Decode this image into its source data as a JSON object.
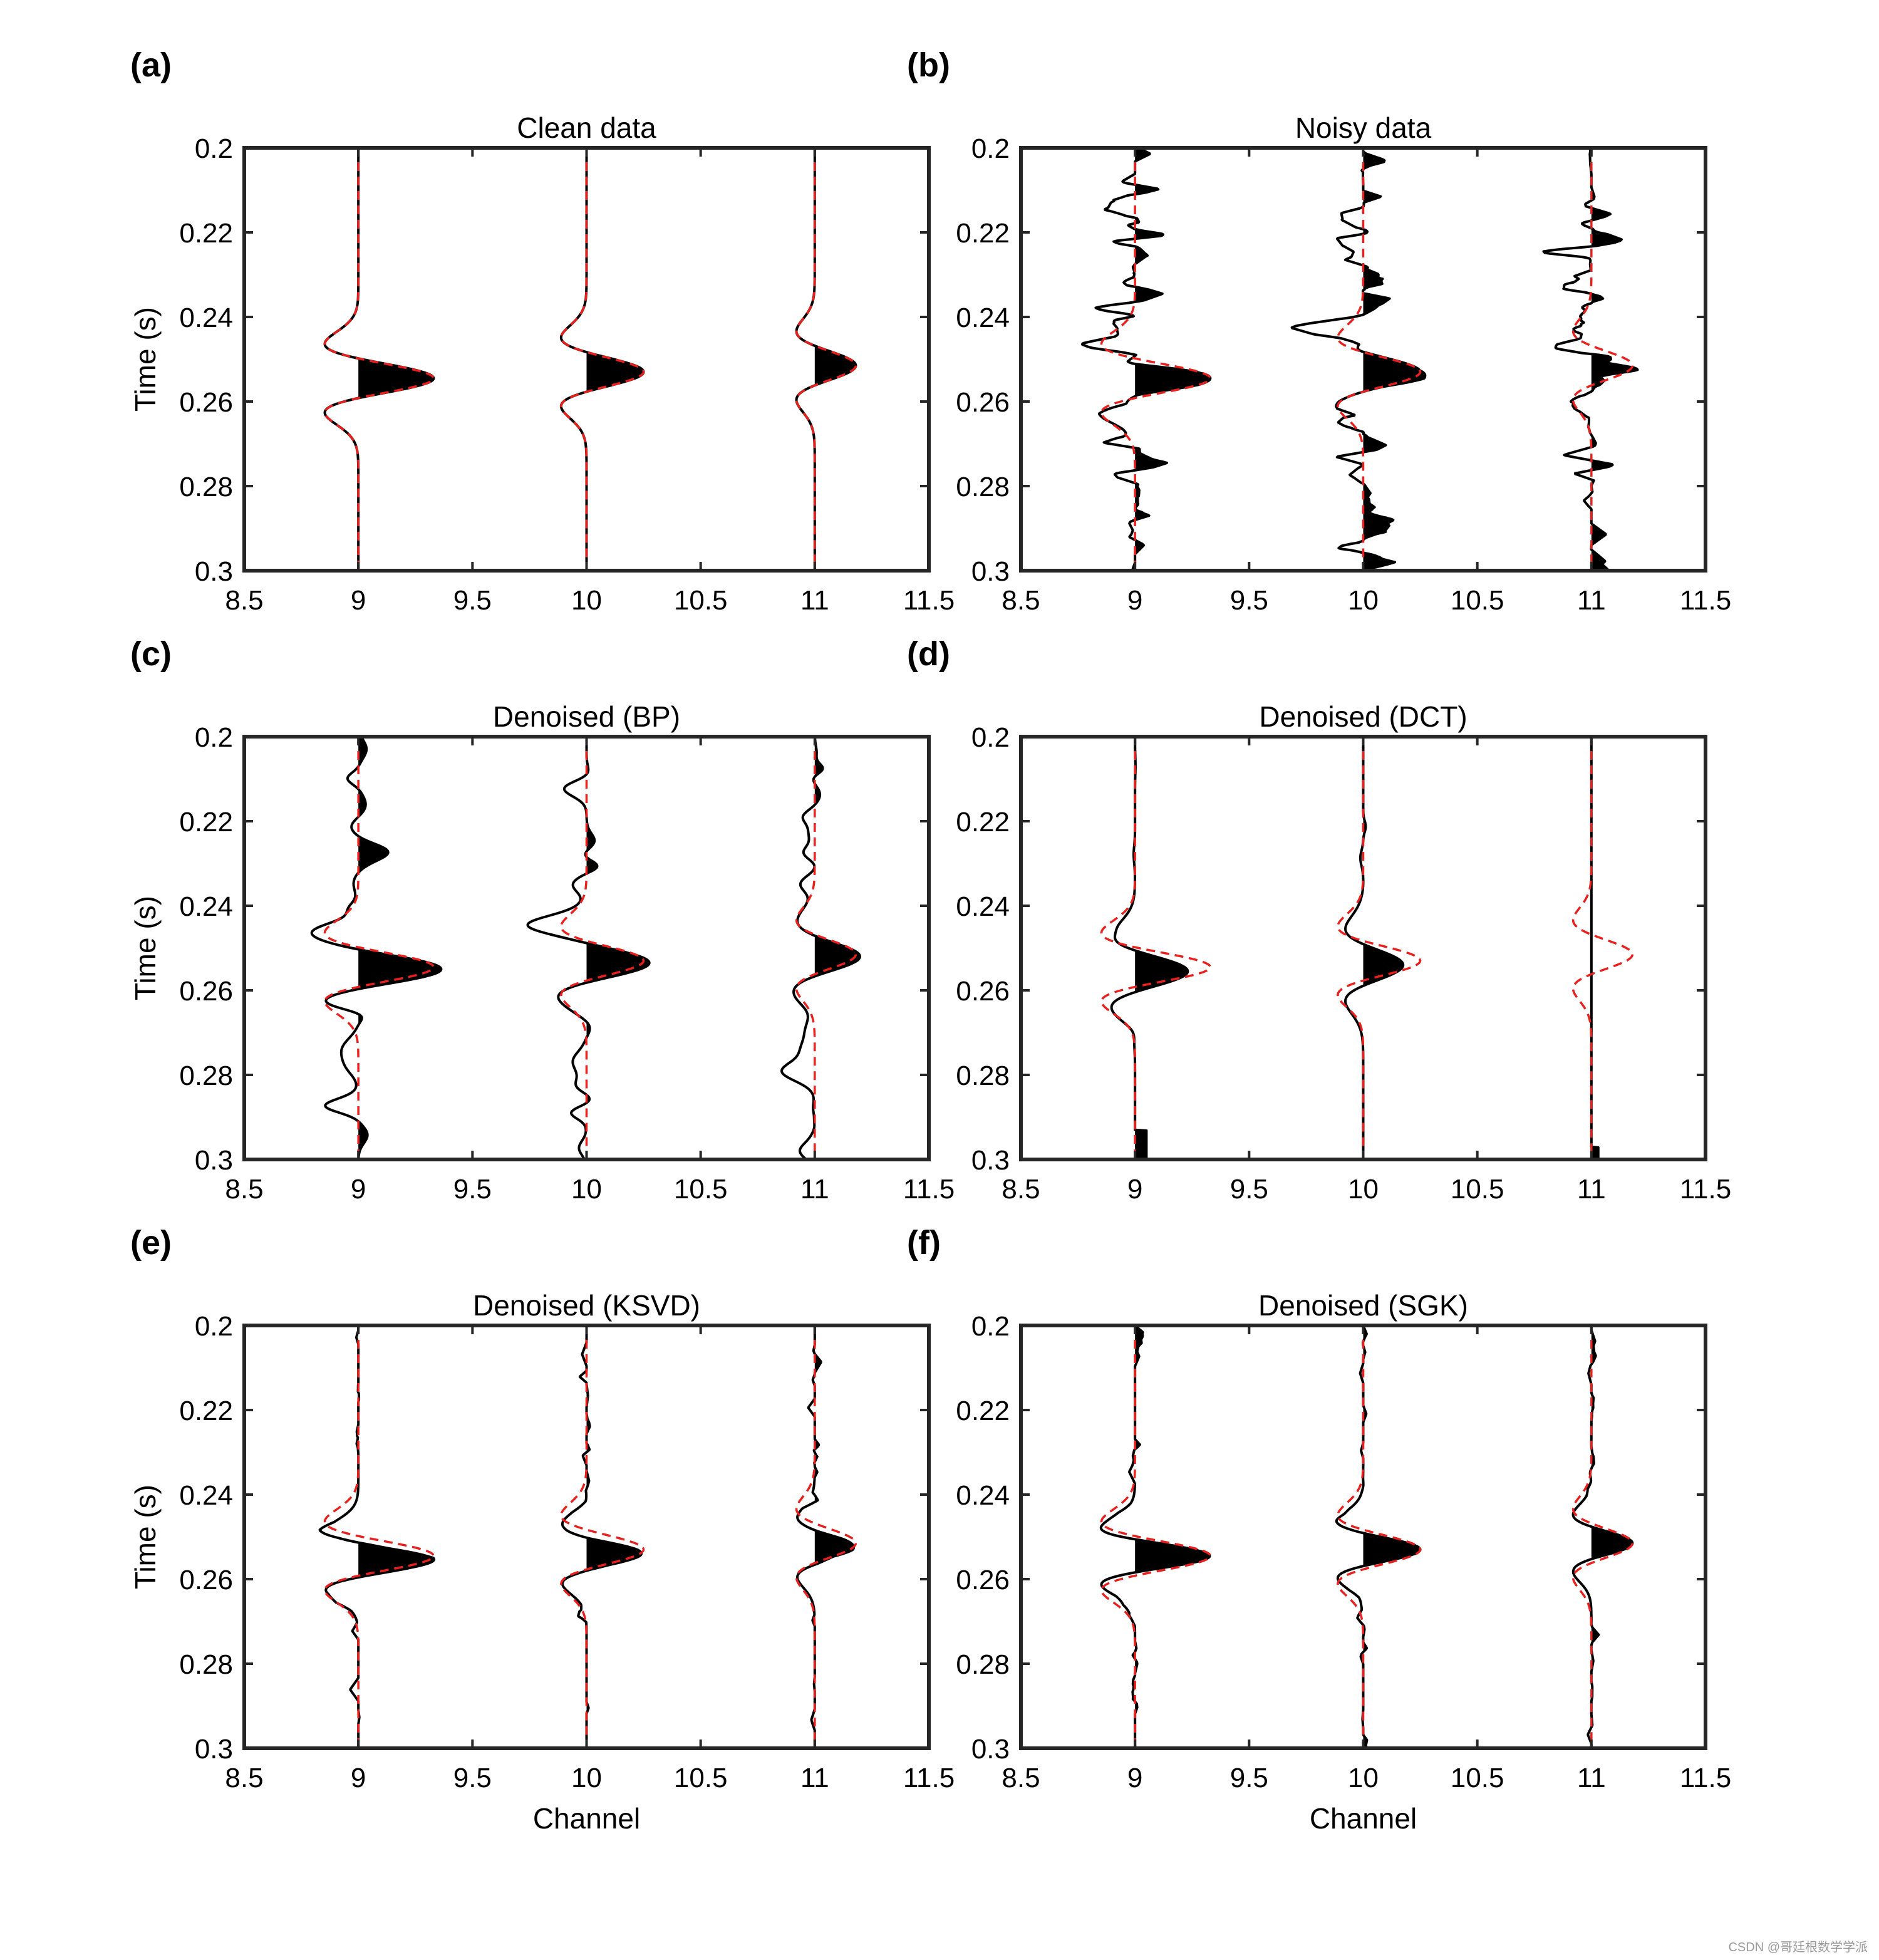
{
  "watermark": "CSDN @哥廷根数学学派",
  "colors": {
    "trace": "#000000",
    "reference": "#e8201e",
    "frame": "#262626"
  },
  "chart_data": [
    {
      "letter": "(a)",
      "title": "Clean data",
      "type": "line",
      "variant": "clean",
      "xlabel": "",
      "ylabel": "Time (s)",
      "xlim": [
        8.5,
        11.5
      ],
      "xticks": [
        "8.5",
        "9",
        "9.5",
        "10",
        "10.5",
        "11",
        "11.5"
      ],
      "ylim": [
        0.2,
        0.3
      ],
      "yticks": [
        "0.2",
        "0.22",
        "0.24",
        "0.26",
        "0.28",
        "0.3"
      ],
      "y_reversed": true,
      "channels": [
        9,
        10,
        11
      ],
      "reference_wavelets": [
        {
          "channel": 9,
          "t0": 0.2545,
          "amp": 0.33
        },
        {
          "channel": 10,
          "t0": 0.253,
          "amp": 0.25
        },
        {
          "channel": 11,
          "t0": 0.2515,
          "amp": 0.18
        }
      ]
    },
    {
      "letter": "(b)",
      "title": "Noisy data",
      "type": "line",
      "variant": "noisy",
      "xlabel": "",
      "ylabel": "",
      "xlim": [
        8.5,
        11.5
      ],
      "xticks": [
        "8.5",
        "9",
        "9.5",
        "10",
        "10.5",
        "11",
        "11.5"
      ],
      "ylim": [
        0.2,
        0.3
      ],
      "yticks": [
        "0.2",
        "0.22",
        "0.24",
        "0.26",
        "0.28",
        "0.3"
      ],
      "y_reversed": true,
      "channels": [
        9,
        10,
        11
      ],
      "reference_wavelets": [
        {
          "channel": 9,
          "t0": 0.2545,
          "amp": 0.33
        },
        {
          "channel": 10,
          "t0": 0.253,
          "amp": 0.25
        },
        {
          "channel": 11,
          "t0": 0.2515,
          "amp": 0.18
        }
      ]
    },
    {
      "letter": "(c)",
      "title": "Denoised (BP)",
      "type": "line",
      "variant": "bp",
      "xlabel": "",
      "ylabel": "Time (s)",
      "xlim": [
        8.5,
        11.5
      ],
      "xticks": [
        "8.5",
        "9",
        "9.5",
        "10",
        "10.5",
        "11",
        "11.5"
      ],
      "ylim": [
        0.2,
        0.3
      ],
      "yticks": [
        "0.2",
        "0.22",
        "0.24",
        "0.26",
        "0.28",
        "0.3"
      ],
      "y_reversed": true,
      "channels": [
        9,
        10,
        11
      ],
      "reference_wavelets": [
        {
          "channel": 9,
          "t0": 0.2545,
          "amp": 0.33
        },
        {
          "channel": 10,
          "t0": 0.253,
          "amp": 0.25
        },
        {
          "channel": 11,
          "t0": 0.2515,
          "amp": 0.18
        }
      ]
    },
    {
      "letter": "(d)",
      "title": "Denoised (DCT)",
      "type": "line",
      "variant": "dct",
      "xlabel": "",
      "ylabel": "",
      "xlim": [
        8.5,
        11.5
      ],
      "xticks": [
        "8.5",
        "9",
        "9.5",
        "10",
        "10.5",
        "11",
        "11.5"
      ],
      "ylim": [
        0.2,
        0.3
      ],
      "yticks": [
        "0.2",
        "0.22",
        "0.24",
        "0.26",
        "0.28",
        "0.3"
      ],
      "y_reversed": true,
      "channels": [
        9,
        10,
        11
      ],
      "reference_wavelets": [
        {
          "channel": 9,
          "t0": 0.2545,
          "amp": 0.33
        },
        {
          "channel": 10,
          "t0": 0.253,
          "amp": 0.25
        },
        {
          "channel": 11,
          "t0": 0.2515,
          "amp": 0.18
        }
      ]
    },
    {
      "letter": "(e)",
      "title": "Denoised (KSVD)",
      "type": "line",
      "variant": "ksvd",
      "xlabel": "Channel",
      "ylabel": "Time (s)",
      "xlim": [
        8.5,
        11.5
      ],
      "xticks": [
        "8.5",
        "9",
        "9.5",
        "10",
        "10.5",
        "11",
        "11.5"
      ],
      "ylim": [
        0.2,
        0.3
      ],
      "yticks": [
        "0.2",
        "0.22",
        "0.24",
        "0.26",
        "0.28",
        "0.3"
      ],
      "y_reversed": true,
      "channels": [
        9,
        10,
        11
      ],
      "reference_wavelets": [
        {
          "channel": 9,
          "t0": 0.2545,
          "amp": 0.33
        },
        {
          "channel": 10,
          "t0": 0.253,
          "amp": 0.25
        },
        {
          "channel": 11,
          "t0": 0.2515,
          "amp": 0.18
        }
      ]
    },
    {
      "letter": "(f)",
      "title": "Denoised (SGK)",
      "type": "line",
      "variant": "sgk",
      "xlabel": "Channel",
      "ylabel": "",
      "xlim": [
        8.5,
        11.5
      ],
      "xticks": [
        "8.5",
        "9",
        "9.5",
        "10",
        "10.5",
        "11",
        "11.5"
      ],
      "ylim": [
        0.2,
        0.3
      ],
      "yticks": [
        "0.2",
        "0.22",
        "0.24",
        "0.26",
        "0.28",
        "0.3"
      ],
      "y_reversed": true,
      "channels": [
        9,
        10,
        11
      ],
      "reference_wavelets": [
        {
          "channel": 9,
          "t0": 0.2545,
          "amp": 0.33
        },
        {
          "channel": 10,
          "t0": 0.253,
          "amp": 0.25
        },
        {
          "channel": 11,
          "t0": 0.2515,
          "amp": 0.18
        }
      ]
    }
  ]
}
